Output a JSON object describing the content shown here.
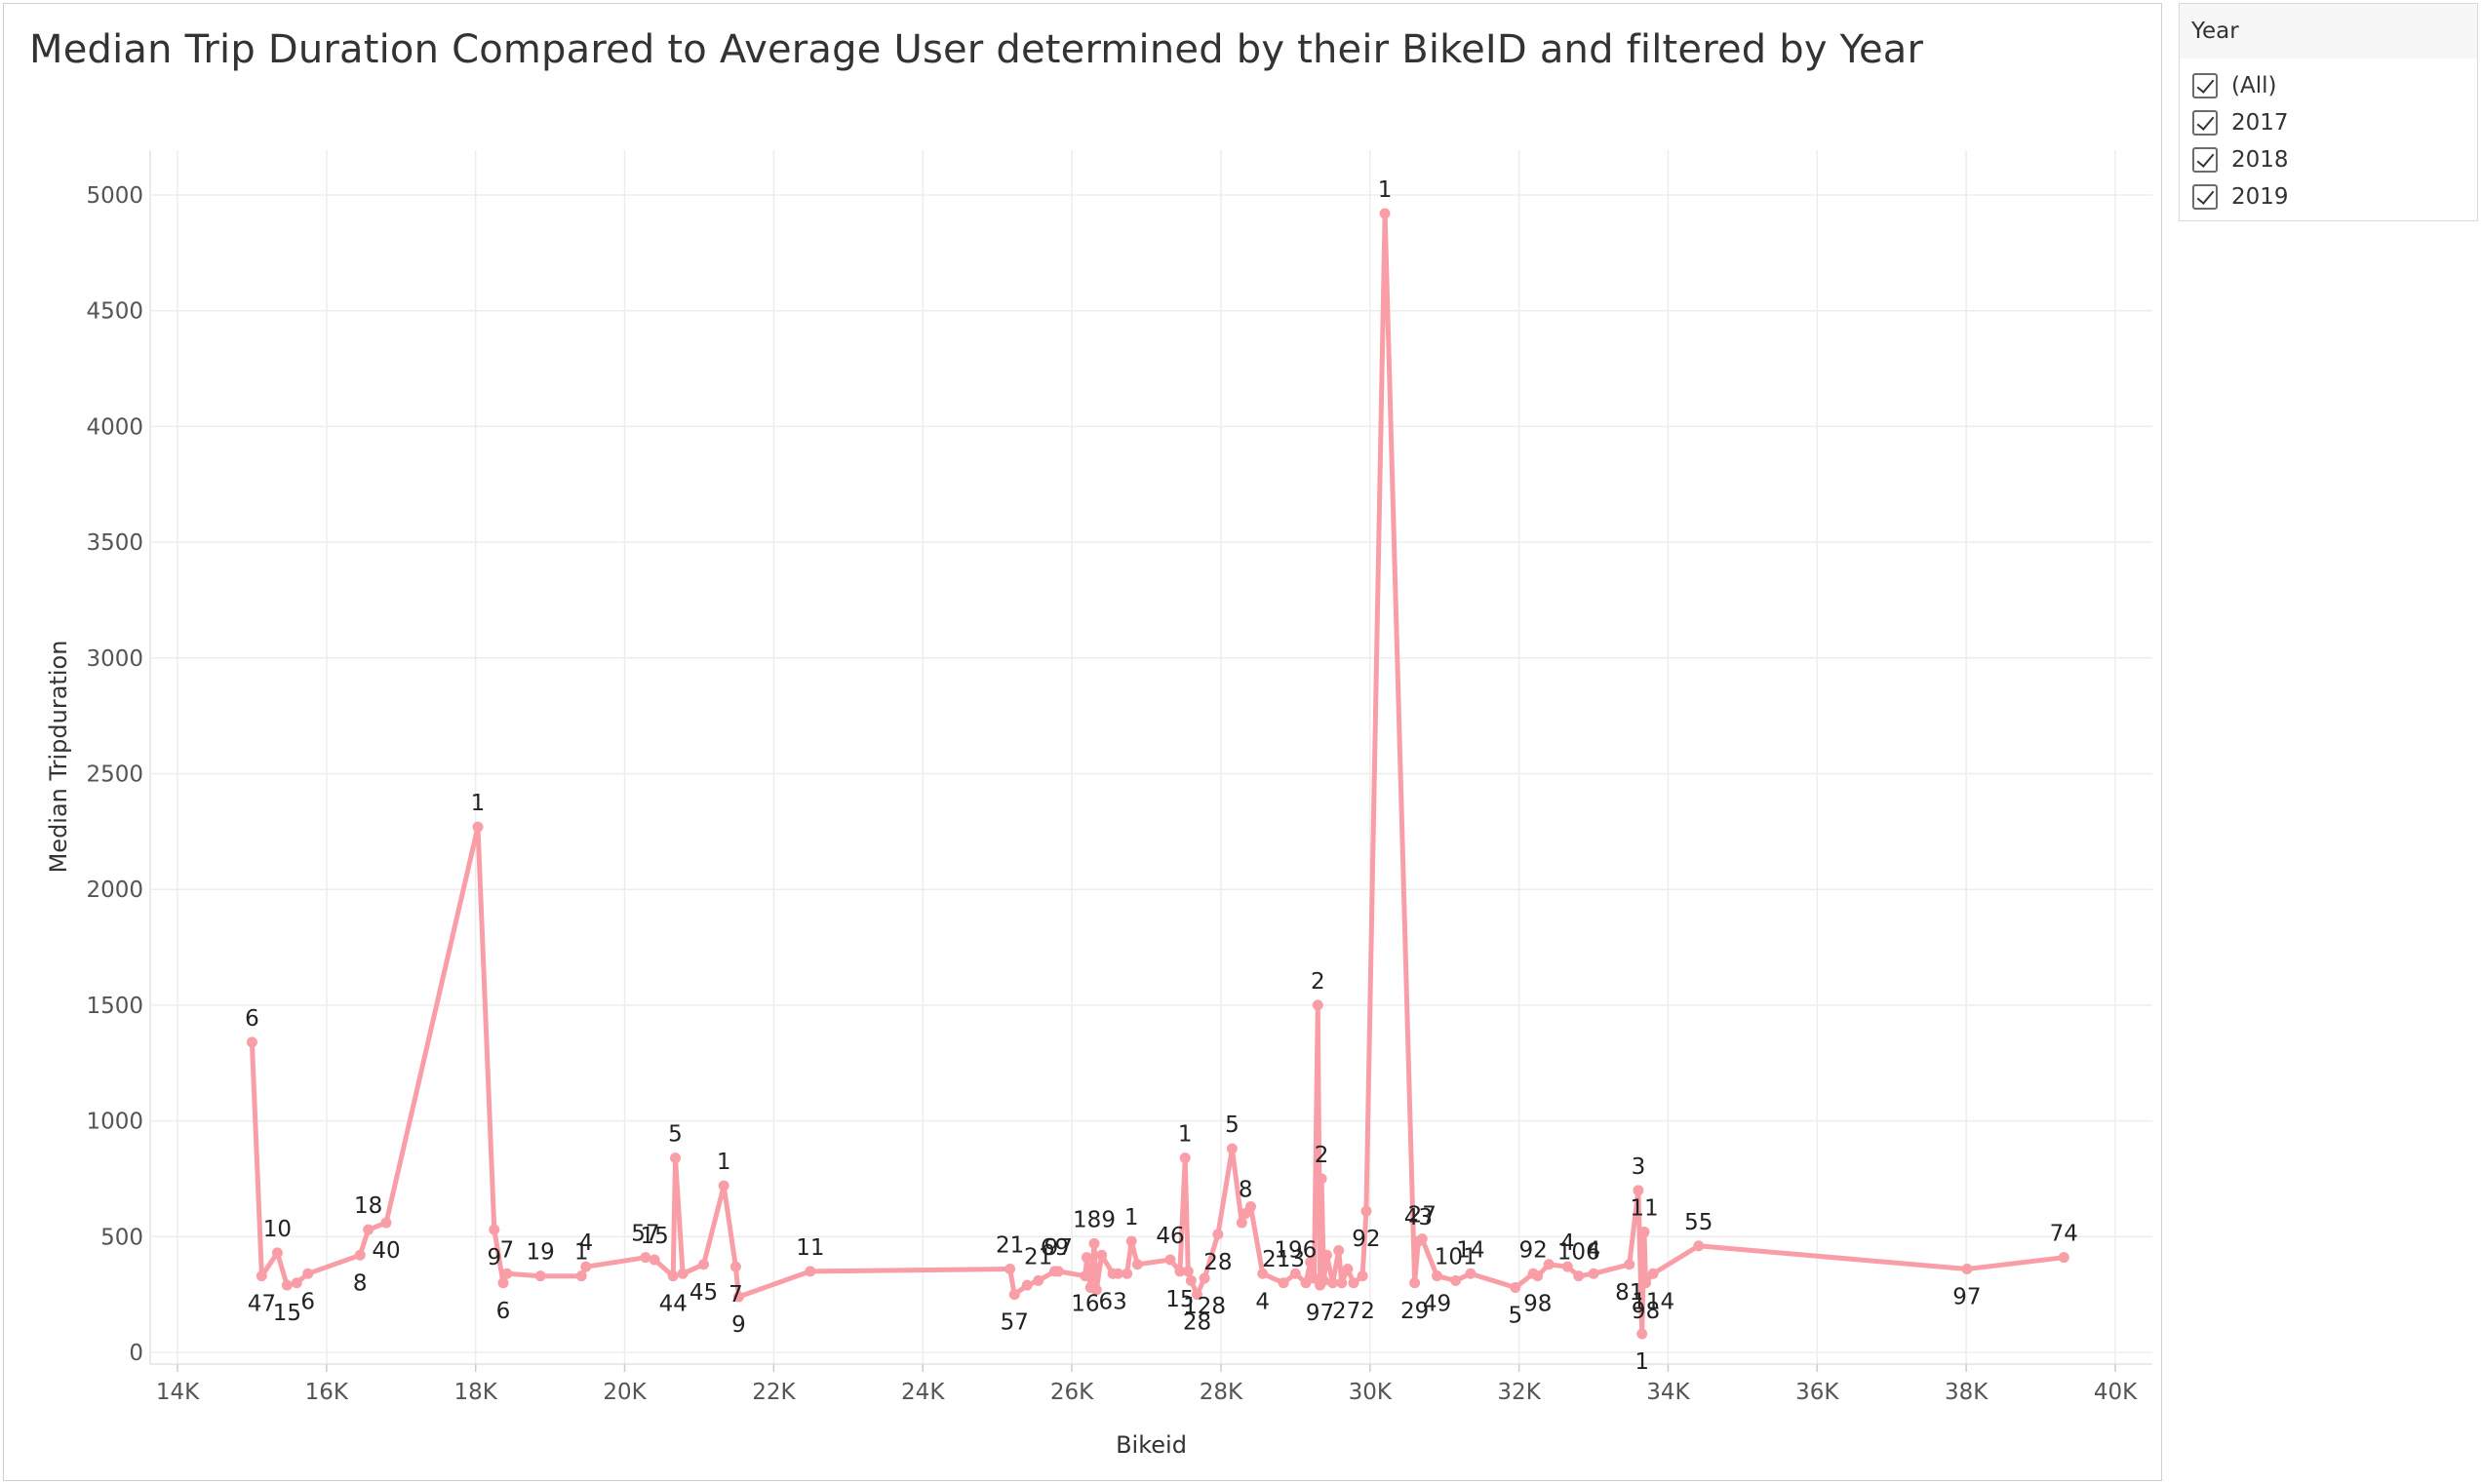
{
  "title": "Median Trip Duration Compared to Average User determined by their BikeID and filtered by Year",
  "filter": {
    "header": "Year",
    "options": [
      "(All)",
      "2017",
      "2018",
      "2019"
    ]
  },
  "colors": {
    "line": "#f99ea6",
    "grid": "#ededed",
    "axis_text": "#555555",
    "label_text": "#222222"
  },
  "chart_data": {
    "type": "line",
    "title": "Median Trip Duration Compared to Average User determined by their BikeID and filtered by Year",
    "xlabel": "Bikeid",
    "ylabel": "Median Tripduration",
    "xlim": [
      14000,
      40000
    ],
    "ylim": [
      0,
      5000
    ],
    "xticks": [
      14000,
      16000,
      18000,
      20000,
      22000,
      24000,
      26000,
      28000,
      30000,
      32000,
      34000,
      36000,
      38000,
      40000
    ],
    "xtick_labels": [
      "14K",
      "16K",
      "18K",
      "20K",
      "22K",
      "24K",
      "26K",
      "28K",
      "30K",
      "32K",
      "34K",
      "36K",
      "38K",
      "40K"
    ],
    "yticks": [
      0,
      500,
      1000,
      1500,
      2000,
      2500,
      3000,
      3500,
      4000,
      4500,
      5000
    ],
    "grid": true,
    "series": [
      {
        "points": [
          [
            15000,
            1340,
            "6"
          ],
          [
            15130,
            330,
            "47"
          ],
          [
            15340,
            430,
            "10"
          ],
          [
            15470,
            290,
            "15"
          ],
          [
            15600,
            300,
            ""
          ],
          [
            15750,
            340,
            "6"
          ],
          [
            16450,
            420,
            "8"
          ],
          [
            16560,
            530,
            "18"
          ],
          [
            16800,
            560,
            "40"
          ],
          [
            18030,
            2270,
            "1"
          ],
          [
            18250,
            530,
            "9"
          ],
          [
            18370,
            300,
            "6"
          ],
          [
            18420,
            340,
            "7"
          ],
          [
            18870,
            330,
            "19"
          ],
          [
            19420,
            330,
            "1"
          ],
          [
            19480,
            370,
            "4"
          ],
          [
            20280,
            410,
            "57"
          ],
          [
            20400,
            400,
            "15"
          ],
          [
            20650,
            330,
            "44"
          ],
          [
            20680,
            840,
            "5"
          ],
          [
            20780,
            340,
            ""
          ],
          [
            21060,
            380,
            "45"
          ],
          [
            21330,
            720,
            "1"
          ],
          [
            21490,
            370,
            "7"
          ],
          [
            21530,
            240,
            "9"
          ],
          [
            22490,
            350,
            "11"
          ],
          [
            25170,
            360,
            "21"
          ],
          [
            25230,
            250,
            "57"
          ],
          [
            25400,
            290,
            ""
          ],
          [
            25550,
            310,
            "21"
          ],
          [
            25770,
            350,
            "69"
          ],
          [
            25820,
            350,
            "97"
          ],
          [
            26180,
            330,
            "16"
          ],
          [
            26200,
            410,
            ""
          ],
          [
            26250,
            280,
            ""
          ],
          [
            26300,
            470,
            "189"
          ],
          [
            26330,
            270,
            ""
          ],
          [
            26400,
            420,
            ""
          ],
          [
            26550,
            340,
            "63"
          ],
          [
            26620,
            340,
            ""
          ],
          [
            26740,
            340,
            ""
          ],
          [
            26800,
            480,
            "1"
          ],
          [
            26880,
            380,
            ""
          ],
          [
            27320,
            400,
            "46"
          ],
          [
            27450,
            350,
            "15"
          ],
          [
            27520,
            840,
            "1"
          ],
          [
            27560,
            350,
            ""
          ],
          [
            27600,
            310,
            ""
          ],
          [
            27680,
            250,
            "28"
          ],
          [
            27780,
            320,
            "128"
          ],
          [
            27960,
            510,
            "28"
          ],
          [
            28150,
            880,
            "5"
          ],
          [
            28280,
            560,
            ""
          ],
          [
            28330,
            600,
            "8"
          ],
          [
            28400,
            630,
            ""
          ],
          [
            28560,
            340,
            "4"
          ],
          [
            28840,
            300,
            "213"
          ],
          [
            29000,
            340,
            "196"
          ],
          [
            29140,
            300,
            ""
          ],
          [
            29200,
            390,
            ""
          ],
          [
            29250,
            320,
            ""
          ],
          [
            29300,
            1500,
            "2"
          ],
          [
            29330,
            290,
            "97"
          ],
          [
            29350,
            750,
            "2"
          ],
          [
            29380,
            310,
            ""
          ],
          [
            29420,
            420,
            ""
          ],
          [
            29500,
            300,
            ""
          ],
          [
            29580,
            440,
            ""
          ],
          [
            29620,
            300,
            ""
          ],
          [
            29700,
            360,
            ""
          ],
          [
            29780,
            300,
            "272"
          ],
          [
            29900,
            330,
            ""
          ],
          [
            29950,
            610,
            "92"
          ],
          [
            30200,
            4920,
            "1"
          ],
          [
            30600,
            300,
            "29"
          ],
          [
            30650,
            480,
            "43"
          ],
          [
            30700,
            490,
            "27"
          ],
          [
            30900,
            330,
            "49"
          ],
          [
            31150,
            310,
            "101"
          ],
          [
            31350,
            340,
            "14"
          ],
          [
            31950,
            280,
            "5"
          ],
          [
            32190,
            340,
            "92"
          ],
          [
            32250,
            330,
            "98"
          ],
          [
            32400,
            380,
            ""
          ],
          [
            32650,
            370,
            "4"
          ],
          [
            32800,
            330,
            "106"
          ],
          [
            33000,
            340,
            "4"
          ],
          [
            33480,
            380,
            "81"
          ],
          [
            33600,
            700,
            "3"
          ],
          [
            33650,
            80,
            "1"
          ],
          [
            33680,
            520,
            "11"
          ],
          [
            33700,
            300,
            "98"
          ],
          [
            33800,
            340,
            "114"
          ],
          [
            34410,
            460,
            "55"
          ],
          [
            38010,
            360,
            "97"
          ],
          [
            39310,
            410,
            "74"
          ]
        ]
      }
    ]
  }
}
